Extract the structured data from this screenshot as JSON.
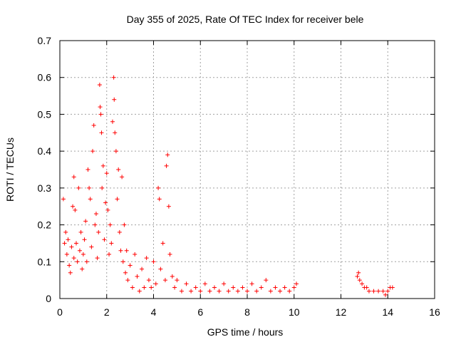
{
  "chart_data": {
    "type": "scatter",
    "title": "Day 355 of 2025, Rate Of TEC Index for receiver bele",
    "xlabel": "GPS time / hours",
    "ylabel": "ROTI / TECUs",
    "xlim": [
      0,
      16
    ],
    "ylim": [
      0,
      0.7
    ],
    "xticks": [
      0,
      2,
      4,
      6,
      8,
      10,
      12,
      14,
      16
    ],
    "yticks": [
      0,
      0.1,
      0.2,
      0.3,
      0.4,
      0.5,
      0.6,
      0.7
    ],
    "xtick_labels": [
      "0",
      "2",
      "4",
      "6",
      "8",
      "10",
      "12",
      "14",
      "16"
    ],
    "ytick_labels": [
      "0",
      "0.1",
      "0.2",
      "0.3",
      "0.4",
      "0.5",
      "0.6",
      "0.7"
    ],
    "grid": true,
    "marker": "+",
    "color": "#ff0000",
    "series": [
      {
        "name": "ROTI",
        "points": [
          [
            0.15,
            0.27
          ],
          [
            0.2,
            0.15
          ],
          [
            0.25,
            0.18
          ],
          [
            0.3,
            0.12
          ],
          [
            0.35,
            0.16
          ],
          [
            0.4,
            0.09
          ],
          [
            0.45,
            0.07
          ],
          [
            0.5,
            0.14
          ],
          [
            0.55,
            0.25
          ],
          [
            0.6,
            0.33
          ],
          [
            0.6,
            0.11
          ],
          [
            0.65,
            0.24
          ],
          [
            0.7,
            0.15
          ],
          [
            0.75,
            0.1
          ],
          [
            0.8,
            0.3
          ],
          [
            0.85,
            0.13
          ],
          [
            0.9,
            0.18
          ],
          [
            0.95,
            0.08
          ],
          [
            1.0,
            0.12
          ],
          [
            1.05,
            0.16
          ],
          [
            1.1,
            0.21
          ],
          [
            1.15,
            0.1
          ],
          [
            1.2,
            0.35
          ],
          [
            1.25,
            0.3
          ],
          [
            1.3,
            0.27
          ],
          [
            1.35,
            0.14
          ],
          [
            1.4,
            0.4
          ],
          [
            1.45,
            0.47
          ],
          [
            1.5,
            0.2
          ],
          [
            1.55,
            0.23
          ],
          [
            1.6,
            0.11
          ],
          [
            1.65,
            0.18
          ],
          [
            1.7,
            0.58
          ],
          [
            1.72,
            0.52
          ],
          [
            1.75,
            0.5
          ],
          [
            1.78,
            0.45
          ],
          [
            1.8,
            0.3
          ],
          [
            1.85,
            0.36
          ],
          [
            1.9,
            0.16
          ],
          [
            1.95,
            0.26
          ],
          [
            2.0,
            0.34
          ],
          [
            2.05,
            0.24
          ],
          [
            2.1,
            0.12
          ],
          [
            2.15,
            0.2
          ],
          [
            2.2,
            0.15
          ],
          [
            2.25,
            0.48
          ],
          [
            2.3,
            0.6
          ],
          [
            2.32,
            0.54
          ],
          [
            2.35,
            0.45
          ],
          [
            2.4,
            0.4
          ],
          [
            2.45,
            0.27
          ],
          [
            2.5,
            0.35
          ],
          [
            2.55,
            0.18
          ],
          [
            2.6,
            0.13
          ],
          [
            2.65,
            0.33
          ],
          [
            2.7,
            0.1
          ],
          [
            2.75,
            0.2
          ],
          [
            2.8,
            0.07
          ],
          [
            2.85,
            0.13
          ],
          [
            2.9,
            0.05
          ],
          [
            3.0,
            0.09
          ],
          [
            3.1,
            0.03
          ],
          [
            3.2,
            0.12
          ],
          [
            3.3,
            0.06
          ],
          [
            3.4,
            0.02
          ],
          [
            3.5,
            0.08
          ],
          [
            3.6,
            0.03
          ],
          [
            3.7,
            0.11
          ],
          [
            3.8,
            0.05
          ],
          [
            3.9,
            0.03
          ],
          [
            4.0,
            0.1
          ],
          [
            4.1,
            0.04
          ],
          [
            4.2,
            0.3
          ],
          [
            4.25,
            0.27
          ],
          [
            4.3,
            0.08
          ],
          [
            4.4,
            0.15
          ],
          [
            4.5,
            0.05
          ],
          [
            4.55,
            0.36
          ],
          [
            4.6,
            0.39
          ],
          [
            4.65,
            0.25
          ],
          [
            4.7,
            0.12
          ],
          [
            4.8,
            0.06
          ],
          [
            4.9,
            0.03
          ],
          [
            5.0,
            0.05
          ],
          [
            5.2,
            0.02
          ],
          [
            5.4,
            0.04
          ],
          [
            5.6,
            0.02
          ],
          [
            5.8,
            0.03
          ],
          [
            6.0,
            0.02
          ],
          [
            6.2,
            0.04
          ],
          [
            6.4,
            0.02
          ],
          [
            6.6,
            0.03
          ],
          [
            6.8,
            0.02
          ],
          [
            7.0,
            0.04
          ],
          [
            7.2,
            0.02
          ],
          [
            7.4,
            0.03
          ],
          [
            7.6,
            0.02
          ],
          [
            7.8,
            0.03
          ],
          [
            8.0,
            0.02
          ],
          [
            8.2,
            0.04
          ],
          [
            8.4,
            0.02
          ],
          [
            8.6,
            0.03
          ],
          [
            8.8,
            0.05
          ],
          [
            9.0,
            0.02
          ],
          [
            9.2,
            0.03
          ],
          [
            9.4,
            0.02
          ],
          [
            9.6,
            0.03
          ],
          [
            9.8,
            0.02
          ],
          [
            10.0,
            0.03
          ],
          [
            10.1,
            0.04
          ],
          [
            12.7,
            0.06
          ],
          [
            12.75,
            0.07
          ],
          [
            12.8,
            0.05
          ],
          [
            12.9,
            0.04
          ],
          [
            13.0,
            0.03
          ],
          [
            13.1,
            0.03
          ],
          [
            13.2,
            0.02
          ],
          [
            13.4,
            0.02
          ],
          [
            13.6,
            0.02
          ],
          [
            13.8,
            0.02
          ],
          [
            13.9,
            0.01
          ],
          [
            14.0,
            0.02
          ],
          [
            14.1,
            0.03
          ],
          [
            14.2,
            0.03
          ]
        ]
      }
    ]
  }
}
